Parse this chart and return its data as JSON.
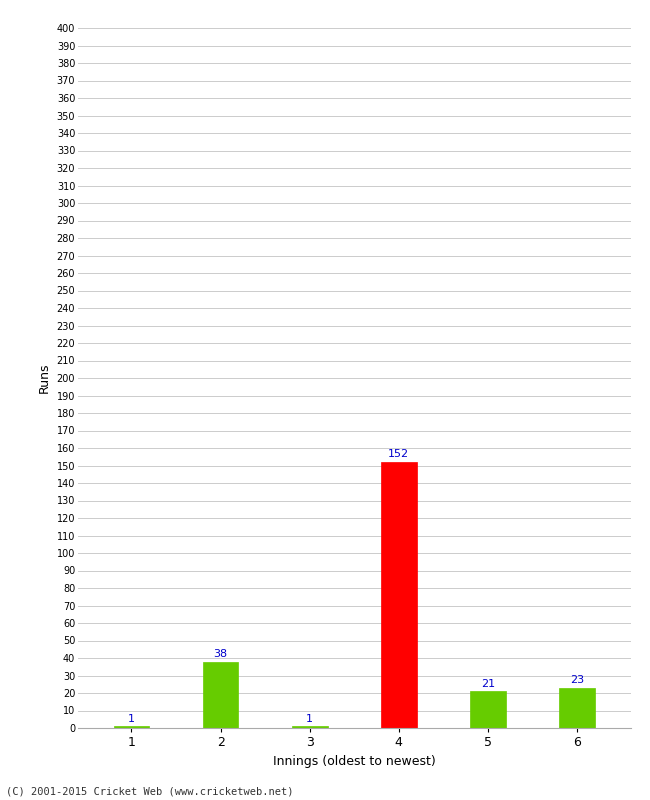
{
  "categories": [
    "1",
    "2",
    "3",
    "4",
    "5",
    "6"
  ],
  "values": [
    1,
    38,
    1,
    152,
    21,
    23
  ],
  "bar_colors": [
    "#66cc00",
    "#66cc00",
    "#66cc00",
    "#ff0000",
    "#66cc00",
    "#66cc00"
  ],
  "xlabel": "Innings (oldest to newest)",
  "ylabel": "Runs",
  "ylim": [
    0,
    400
  ],
  "background_color": "#ffffff",
  "grid_color": "#cccccc",
  "label_color": "#0000cc",
  "footer": "(C) 2001-2015 Cricket Web (www.cricketweb.net)",
  "bar_width": 0.4
}
